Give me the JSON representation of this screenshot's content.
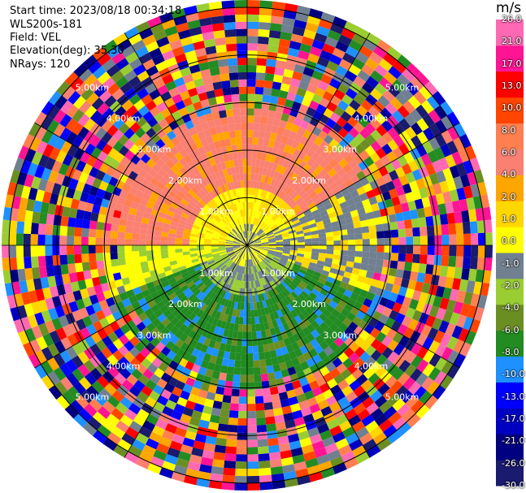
{
  "info": {
    "start_time": "Start time: 2023/08/18 00:34:18",
    "instrument": "WLS200s-181",
    "field": "Field: VEL",
    "elevation": "Elevation(deg): 35.30",
    "nrays": "NRays: 120"
  },
  "colorbar": {
    "unit": "m/s",
    "colors": [
      "#1a1a6e",
      "#000080",
      "#0000c0",
      "#0000ff",
      "#1e90ff",
      "#228b22",
      "#6b8e23",
      "#9acd32",
      "#708090",
      "#ffff00",
      "#ffd700",
      "#ffa500",
      "#fa8072",
      "#ff7f50",
      "#ff4500",
      "#ff0000",
      "#ff1493",
      "#ff69b4"
    ],
    "labels": [
      "-30.0",
      "-26.0",
      "-21.0",
      "-17.0",
      "-13.0",
      "-10.0",
      "-8.0",
      "-6.0",
      "-4.0",
      "-2.0",
      "-1.0",
      "0.0",
      "1.0",
      "2.0",
      "4.0",
      "6.0",
      "8.0",
      "10.0",
      "13.0",
      "17.0",
      "21.0",
      "26.0"
    ]
  },
  "chart_data": {
    "type": "heatmap",
    "title": "",
    "rings": [
      "1.00km",
      "2.00km",
      "3.00km",
      "4.00km",
      "5.00km"
    ],
    "nrays": 120,
    "range_ring_km": [
      1,
      2,
      3,
      4,
      5
    ],
    "unit": "m/s",
    "vmin": -30,
    "vmax": 30
  }
}
